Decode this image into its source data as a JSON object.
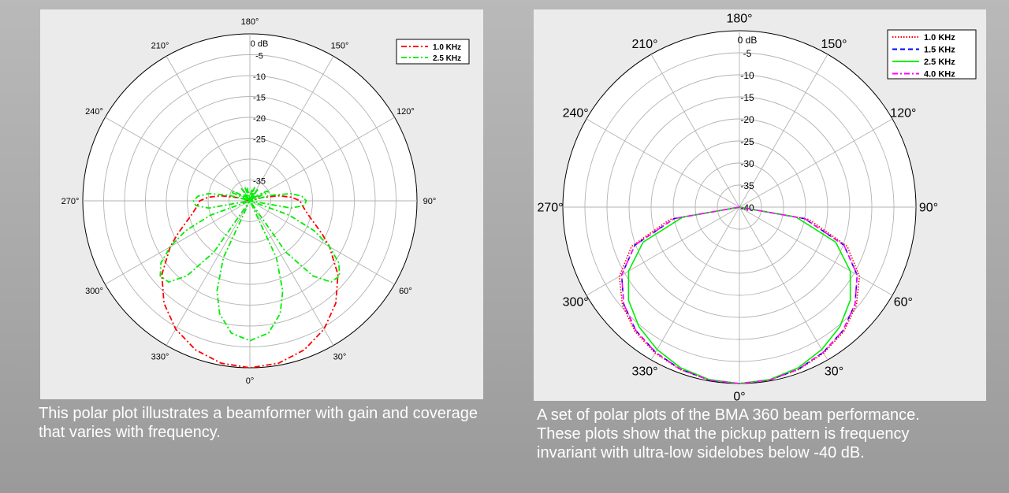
{
  "captions": {
    "left": "This polar plot illustrates a beamformer with gain and coverage that varies with frequency.",
    "right": "A set of polar plots of the BMA 360 beam performance. These plots show that the pickup pattern is frequency invariant with ultra-low sidelobes below -40 dB."
  },
  "colors": {
    "background": "#a8a8a8",
    "panel": "#ebebeb",
    "red": "#ff0000",
    "green": "#00ee00",
    "blue": "#0000ff",
    "magenta": "#ff00ff"
  },
  "chart_data": [
    {
      "type": "polar",
      "title": "",
      "angle_unit": "degrees",
      "zero_direction": "bottom",
      "angle_ticks": [
        "0°",
        "30°",
        "60°",
        "90°",
        "120°",
        "150°",
        "180°",
        "210°",
        "240°",
        "270°",
        "300°",
        "330°"
      ],
      "radial_ticks": [
        "0 dB",
        "-5",
        "-10",
        "-15",
        "-20",
        "-25",
        "-35"
      ],
      "rlim_db": [
        -40,
        0
      ],
      "grid": true,
      "legend": {
        "position": "top-right",
        "entries": [
          "1.0 KHz",
          "2.5 KHz"
        ]
      },
      "series": [
        {
          "name": "1.0 KHz",
          "color": "#ff0000",
          "style": "dashdot",
          "theta": [
            0,
            10,
            20,
            30,
            40,
            50,
            60,
            65,
            70,
            75,
            80,
            85,
            90,
            95,
            100,
            105,
            110
          ],
          "r": [
            0,
            -0.5,
            -2,
            -4.5,
            -8,
            -12.5,
            -18,
            -20.8,
            -23.3,
            -25.2,
            -26.5,
            -27.4,
            -28,
            -30,
            -33,
            -37,
            -40
          ]
        },
        {
          "name": "2.5 KHz",
          "color": "#00ee00",
          "style": "dashdot",
          "theta": [
            0,
            8,
            15,
            20,
            25,
            30,
            35,
            40,
            45,
            50,
            55,
            60,
            65,
            70,
            75,
            80,
            85,
            90,
            95,
            100,
            105,
            110,
            115,
            120,
            125,
            130,
            135,
            140,
            145,
            150,
            155,
            160,
            165,
            170,
            175,
            180
          ],
          "r": [
            -6.5,
            -8,
            -12,
            -17,
            -25,
            -40,
            -25,
            -16.5,
            -12.5,
            -12,
            -14,
            -18,
            -23,
            -30,
            -40,
            -30,
            -27,
            -26.5,
            -27.5,
            -30,
            -35,
            -40,
            -35,
            -35.5,
            -37.5,
            -40,
            -38,
            -40,
            -36.5,
            -38,
            -40,
            -36.5,
            -38,
            -37,
            -39,
            -40
          ]
        }
      ]
    },
    {
      "type": "polar",
      "title": "",
      "angle_unit": "degrees",
      "zero_direction": "bottom",
      "angle_ticks": [
        "0°",
        "30°",
        "60°",
        "90°",
        "120°",
        "150°",
        "180°",
        "210°",
        "240°",
        "270°",
        "300°",
        "330°"
      ],
      "radial_ticks": [
        "0 dB",
        "-5",
        "-10",
        "-15",
        "-20",
        "-25",
        "-30",
        "-35",
        "-40"
      ],
      "rlim_db": [
        -40,
        0
      ],
      "grid": true,
      "legend": {
        "position": "top-right",
        "entries": [
          "1.0 KHz",
          "1.5 KHz",
          "2.5 KHz",
          "4.0 KHz"
        ]
      },
      "series": [
        {
          "name": "1.0 KHz",
          "color": "#ff0000",
          "style": "dotted",
          "theta": [
            0,
            10,
            20,
            30,
            40,
            50,
            60,
            70,
            80,
            90
          ],
          "r": [
            0,
            -0.2,
            -0.8,
            -1.8,
            -3.2,
            -5.4,
            -8.6,
            -14,
            -24,
            -40
          ]
        },
        {
          "name": "1.5 KHz",
          "color": "#0000ff",
          "style": "dashed",
          "theta": [
            0,
            10,
            20,
            30,
            40,
            50,
            60,
            70,
            80,
            90
          ],
          "r": [
            0,
            -0.2,
            -0.9,
            -2.0,
            -3.5,
            -5.8,
            -9.2,
            -14.8,
            -25,
            -40
          ]
        },
        {
          "name": "2.5 KHz",
          "color": "#00ee00",
          "style": "solid",
          "theta": [
            0,
            10,
            20,
            30,
            40,
            50,
            60,
            70,
            80,
            90
          ],
          "r": [
            0,
            -0.3,
            -1.2,
            -2.7,
            -4.6,
            -7.2,
            -11,
            -16.8,
            -27,
            -40
          ]
        },
        {
          "name": "4.0 KHz",
          "color": "#ff00ff",
          "style": "dashdot",
          "theta": [
            0,
            10,
            20,
            30,
            40,
            50,
            60,
            70,
            80,
            90
          ],
          "r": [
            0,
            -0.2,
            -0.9,
            -2.0,
            -3.5,
            -5.8,
            -9.2,
            -14.8,
            -25,
            -40
          ]
        }
      ]
    }
  ]
}
